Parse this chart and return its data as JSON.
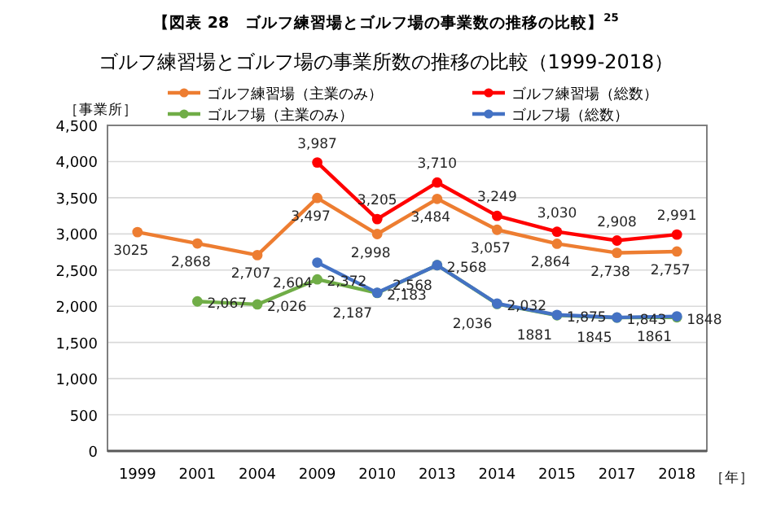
{
  "chart_data": {
    "type": "line",
    "title": "【図表 28　ゴルフ練習場とゴルフ場の事業数の推移の比較】$^{25}$",
    "subtitle": "ゴルフ練習場とゴルフ場の事業所数の推移の比較（1999-2018）",
    "ylabel": "［事業所］",
    "xlabel": "［年］",
    "categories": [
      "1999",
      "2001",
      "2004",
      "2009",
      "2010",
      "2013",
      "2014",
      "2015",
      "2017",
      "2018"
    ],
    "series": [
      {
        "name": "ゴルフ練習場（主業のみ）",
        "color": "#ed7d31",
        "values": [
          3025,
          2868,
          2707,
          3497,
          2998,
          3484,
          3057,
          2864,
          2738,
          2757
        ],
        "value_labels": [
          "3025",
          "2,868",
          "2,707",
          "3,497",
          "2,998",
          "3,484",
          "3,057",
          "2,864",
          "2,738",
          "2,757"
        ]
      },
      {
        "name": "ゴルフ練習場（総数）",
        "color": "#ff0000",
        "values": [
          null,
          null,
          null,
          3987,
          3205,
          3710,
          3249,
          3030,
          2908,
          2991
        ],
        "value_labels": [
          null,
          null,
          null,
          "3,987",
          "3,205",
          "3,710",
          "3,249",
          "3,030",
          "2,908",
          "2,991"
        ]
      },
      {
        "name": "ゴルフ場（主業のみ）",
        "color": "#70ad47",
        "values": [
          null,
          2067,
          2026,
          2372,
          2183,
          2568,
          2032,
          1875,
          1843,
          1848
        ],
        "value_labels": [
          null,
          "2,067",
          "2,026",
          "2,372",
          "2,183",
          "2,568",
          "2,032",
          "1,875",
          "1,843",
          "1848"
        ]
      },
      {
        "name": "ゴルフ場（総数）",
        "color": "#4472c4",
        "values": [
          null,
          null,
          null,
          2604,
          2187,
          2568,
          2036,
          1881,
          1845,
          1861
        ],
        "value_labels": [
          null,
          null,
          null,
          "2,604",
          "2,187",
          "2,568",
          "2,036",
          "1881",
          "1845",
          "1861"
        ]
      }
    ],
    "ylim": [
      0,
      4500
    ],
    "yticks": [
      0,
      500,
      {
        "value": 1000,
        "label": "1,000"
      },
      {
        "value": 1500,
        "label": "1,500"
      },
      {
        "value": 2000,
        "label": "2,000"
      },
      {
        "value": 2500,
        "label": "2,500"
      },
      {
        "value": 3000,
        "label": "3,000"
      },
      {
        "value": 3500,
        "label": "3,500"
      },
      {
        "value": 4000,
        "label": "4,000"
      },
      {
        "value": 4500,
        "label": "4,500"
      }
    ],
    "grid": "y",
    "legend": "top",
    "marker": "circle",
    "line_style": "solid"
  }
}
